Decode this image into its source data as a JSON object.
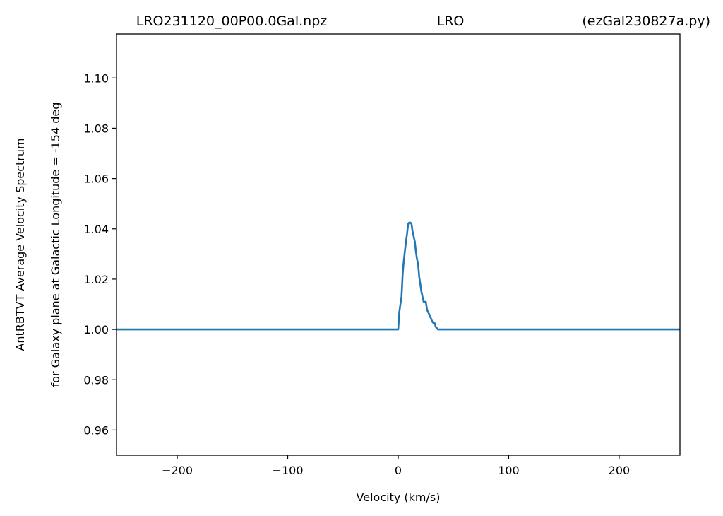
{
  "title": {
    "left": "LRO231120_00P00.0Gal.npz",
    "center": "LRO",
    "right": "(ezGal230827a.py)"
  },
  "chart_data": {
    "type": "line",
    "xlabel": "Velocity (km/s)",
    "ylabel_line1": "AntRBTVT Average Velocity Spectrum",
    "ylabel_line2": "for Galaxy plane at Galactic Longitude = -154 deg",
    "xlim": [
      -255,
      255
    ],
    "ylim": [
      0.95,
      1.1175
    ],
    "xticks": [
      -200,
      -100,
      0,
      100,
      200
    ],
    "xtick_labels": [
      "−200",
      "−100",
      "0",
      "100",
      "200"
    ],
    "yticks": [
      0.96,
      0.98,
      1.0,
      1.02,
      1.04,
      1.06,
      1.08,
      1.1
    ],
    "ytick_labels": [
      "0.96",
      "0.98",
      "1.00",
      "1.02",
      "1.04",
      "1.06",
      "1.08",
      "1.10"
    ],
    "grid": false,
    "series": [
      {
        "color": "#1f77b4",
        "x": [
          -255,
          -1,
          0,
          1,
          2,
          3,
          4,
          5,
          6,
          7,
          8,
          9,
          10,
          11,
          12,
          13,
          14,
          15,
          16,
          17,
          18,
          19,
          20,
          21,
          22,
          23,
          24,
          25,
          26,
          27,
          28,
          29,
          30,
          31,
          32,
          33,
          34,
          35,
          36,
          37,
          38,
          39,
          40,
          41,
          42,
          43,
          44,
          255
        ],
        "y": [
          1.0,
          1.0,
          1.0,
          1.007,
          1.01,
          1.013,
          1.022,
          1.027,
          1.031,
          1.035,
          1.038,
          1.042,
          1.0425,
          1.0425,
          1.042,
          1.039,
          1.037,
          1.035,
          1.031,
          1.028,
          1.026,
          1.021,
          1.018,
          1.015,
          1.013,
          1.011,
          1.011,
          1.011,
          1.008,
          1.007,
          1.006,
          1.005,
          1.004,
          1.003,
          1.0025,
          1.0025,
          1.001,
          1.0005,
          1.0,
          1.0,
          1.0,
          1.0,
          1.0,
          1.0,
          1.0,
          1.0,
          1.0,
          1.0
        ]
      }
    ]
  }
}
